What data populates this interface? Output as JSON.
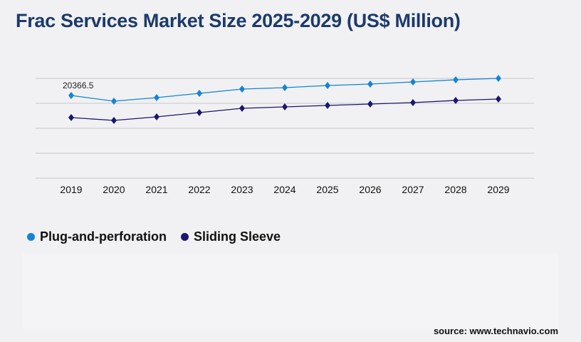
{
  "title": "Frac Services Market Size 2025-2029 (US$ Million)",
  "source": "source: www.technavio.com",
  "chart_data": {
    "type": "line",
    "title": "Frac Services Market Size 2025-2029 (US$ Million)",
    "xlabel": "",
    "ylabel": "",
    "categories": [
      "2019",
      "2020",
      "2021",
      "2022",
      "2023",
      "2024",
      "2025",
      "2026",
      "2027",
      "2028",
      "2029"
    ],
    "ylim": [
      0,
      24580
    ],
    "grid": true,
    "legend": "bottom-left",
    "series": [
      {
        "name": "Plug-and-perforation",
        "color": "#1384d6",
        "values": [
          20366.5,
          18961,
          19838,
          20892,
          21945,
          22296,
          22823,
          23174,
          23701,
          24228,
          24579
        ]
      },
      {
        "name": "Sliding Sleeve",
        "color": "#1c1670",
        "values": [
          14923,
          14221,
          15099,
          16152,
          17205,
          17556,
          17907,
          18259,
          18610,
          19137,
          19488
        ]
      }
    ],
    "annotations": [
      {
        "series": 0,
        "index": 0,
        "text": "20366.5"
      }
    ]
  }
}
